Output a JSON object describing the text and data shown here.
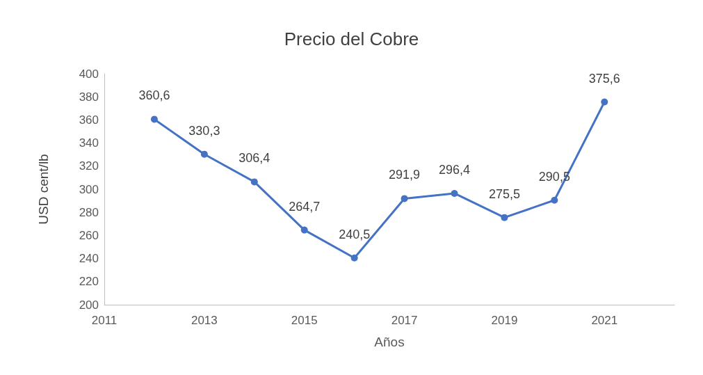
{
  "chart_data": {
    "type": "line",
    "title": "Precio del Cobre",
    "xlabel": "Años",
    "ylabel": "USD cent/lb",
    "x": [
      2012,
      2013,
      2014,
      2015,
      2016,
      2017,
      2018,
      2019,
      2020,
      2021
    ],
    "series": [
      {
        "color": "#4472c4",
        "values": [
          360.6,
          330.3,
          306.4,
          264.7,
          240.5,
          291.9,
          296.4,
          275.5,
          290.5,
          375.6
        ],
        "value_labels": [
          "360,6",
          "330,3",
          "306,4",
          "264,7",
          "240,5",
          "291,9",
          "296,4",
          "275,5",
          "290,5",
          "375,6"
        ]
      }
    ],
    "xlim": [
      2011,
      2022.4
    ],
    "xticks": [
      2011,
      2013,
      2015,
      2017,
      2019,
      2021
    ],
    "ylim": [
      200,
      400
    ],
    "yticks": [
      200,
      220,
      240,
      260,
      280,
      300,
      320,
      340,
      360,
      380,
      400
    ],
    "grid": false,
    "marker": "circle",
    "line_style": "solid"
  }
}
